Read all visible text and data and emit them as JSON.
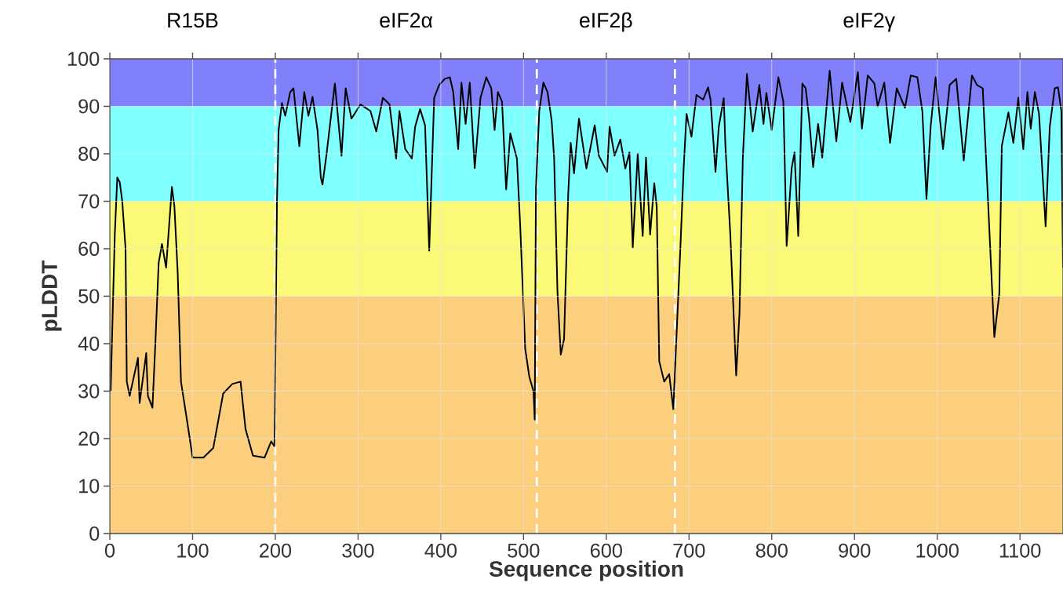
{
  "chart_data": {
    "type": "line",
    "xlabel": "Sequence position",
    "ylabel": "pLDDT",
    "xlim": [
      0,
      1152
    ],
    "ylim": [
      0,
      100
    ],
    "xticks": [
      0,
      100,
      200,
      300,
      400,
      500,
      600,
      700,
      800,
      900,
      1000,
      1100
    ],
    "yticks": [
      0,
      10,
      20,
      30,
      40,
      50,
      60,
      70,
      80,
      90,
      100
    ],
    "grid": true,
    "marker": "none",
    "line_style": "solid",
    "bands": [
      {
        "axis": "y",
        "from": 0,
        "to": 50,
        "color": "#fccf7f"
      },
      {
        "axis": "y",
        "from": 50,
        "to": 70,
        "color": "#fafa78"
      },
      {
        "axis": "y",
        "from": 70,
        "to": 90,
        "color": "#80ffff"
      },
      {
        "axis": "y",
        "from": 90,
        "to": 100,
        "color": "#8080fa"
      }
    ],
    "ref_lines": [
      {
        "axis": "x",
        "value": 200,
        "color": "#ffffff",
        "line_style": "dashed"
      },
      {
        "axis": "x",
        "value": 516,
        "color": "#ffffff",
        "line_style": "dashed"
      },
      {
        "axis": "x",
        "value": 683,
        "color": "#ffffff",
        "line_style": "dashed"
      }
    ],
    "annotations": [
      "R15B",
      "eIF2α",
      "eIF2β",
      "eIF2γ"
    ],
    "x": [
      1,
      4,
      6,
      9,
      12,
      15,
      19,
      20.5,
      24,
      34,
      36,
      44,
      46,
      51.5,
      55,
      59,
      63,
      68,
      75,
      78,
      82,
      86,
      94,
      100,
      113,
      125,
      137,
      148,
      158,
      164,
      173,
      187,
      195,
      199,
      202,
      204,
      208,
      212,
      218,
      222,
      229,
      235,
      240,
      245,
      251,
      255,
      257,
      262,
      268,
      272,
      280,
      285,
      292,
      303,
      315,
      322,
      330,
      338,
      346,
      350,
      357,
      365,
      369,
      375,
      381,
      386,
      392,
      398,
      405,
      411,
      415,
      421,
      425,
      430,
      435,
      441,
      448,
      455,
      461,
      465,
      469,
      474,
      479,
      484,
      488,
      492,
      496,
      502,
      507,
      512,
      513.5,
      515,
      519,
      524,
      529,
      534,
      537,
      541,
      545,
      549,
      554,
      557,
      561,
      567,
      572,
      576,
      586,
      591,
      601,
      604,
      610,
      617,
      623,
      628,
      632,
      638,
      644,
      648,
      653,
      658,
      661,
      664,
      670,
      676,
      681,
      690,
      693.5,
      697,
      703,
      709,
      717,
      723,
      726,
      732,
      736,
      742,
      744,
      750,
      757,
      761,
      765,
      770,
      777,
      785,
      790,
      793.5,
      800,
      808,
      814,
      818,
      824,
      827.5,
      832,
      837,
      841,
      845,
      850,
      856,
      861,
      870,
      878,
      885,
      895,
      904,
      909,
      916,
      924,
      928,
      936,
      943,
      951,
      961,
      968,
      976,
      982,
      987,
      992,
      998,
      1007,
      1015,
      1023,
      1028,
      1032,
      1042,
      1048,
      1055,
      1061,
      1069,
      1075,
      1078,
      1086,
      1092,
      1098,
      1104,
      1109,
      1113,
      1118,
      1123,
      1131,
      1136,
      1142,
      1146,
      1150,
      1152
    ],
    "series": [
      {
        "color": "#000000",
        "values": [
          30,
          50,
          63,
          75,
          74,
          70,
          60,
          32,
          29,
          37,
          27.5,
          38,
          29,
          26.5,
          40,
          57,
          61,
          56,
          73,
          69,
          55,
          32,
          23,
          16,
          16,
          18,
          29.5,
          31.5,
          32,
          22,
          16.4,
          16,
          19.4,
          18.4,
          70,
          85,
          90.7,
          88,
          93,
          93.8,
          81.6,
          93,
          88,
          92,
          85,
          75,
          73.5,
          80,
          89,
          94.8,
          79.6,
          93.8,
          87.4,
          90.4,
          89,
          84.7,
          91.8,
          90.4,
          79,
          89,
          81,
          79,
          85.7,
          89.4,
          86,
          59.6,
          91.8,
          94.5,
          95.8,
          96.1,
          93,
          81,
          95,
          86.3,
          95,
          77,
          91.8,
          96.1,
          93.8,
          85,
          93,
          91,
          72.5,
          84.3,
          81.6,
          79,
          64.7,
          39,
          33,
          30,
          24,
          72.8,
          89,
          95,
          93,
          87,
          79,
          51,
          37.7,
          41,
          71.5,
          82.3,
          75.9,
          87.4,
          81.6,
          76.9,
          86,
          79.6,
          76.2,
          85.7,
          79.6,
          83,
          76.9,
          80.3,
          60.3,
          80,
          62.7,
          79.2,
          63,
          73.8,
          68.8,
          36.3,
          32,
          33.6,
          26.2,
          62,
          76.9,
          88.4,
          83.6,
          92.4,
          91.4,
          94,
          91.4,
          76.2,
          85.7,
          91.7,
          81.6,
          62.7,
          33.3,
          46.4,
          79,
          96.8,
          84.7,
          94.5,
          86.3,
          92.8,
          85,
          96.1,
          91,
          60.6,
          76.9,
          80.3,
          62.7,
          94.8,
          93.8,
          87.7,
          77.2,
          86.3,
          79.2,
          97.5,
          82.6,
          95,
          86.7,
          97.2,
          85.3,
          96.5,
          94.8,
          90,
          95,
          82.3,
          93.8,
          89.7,
          96.5,
          96.1,
          89,
          70.5,
          85.7,
          96.1,
          81,
          94.5,
          95.8,
          86.3,
          78.6,
          96.5,
          94.5,
          93.8,
          71.5,
          41.4,
          50.5,
          81.6,
          88.7,
          82.3,
          91.8,
          81,
          93,
          85.3,
          93,
          88.4,
          64.7,
          85.7,
          93.8,
          94,
          89,
          56
        ]
      }
    ]
  }
}
